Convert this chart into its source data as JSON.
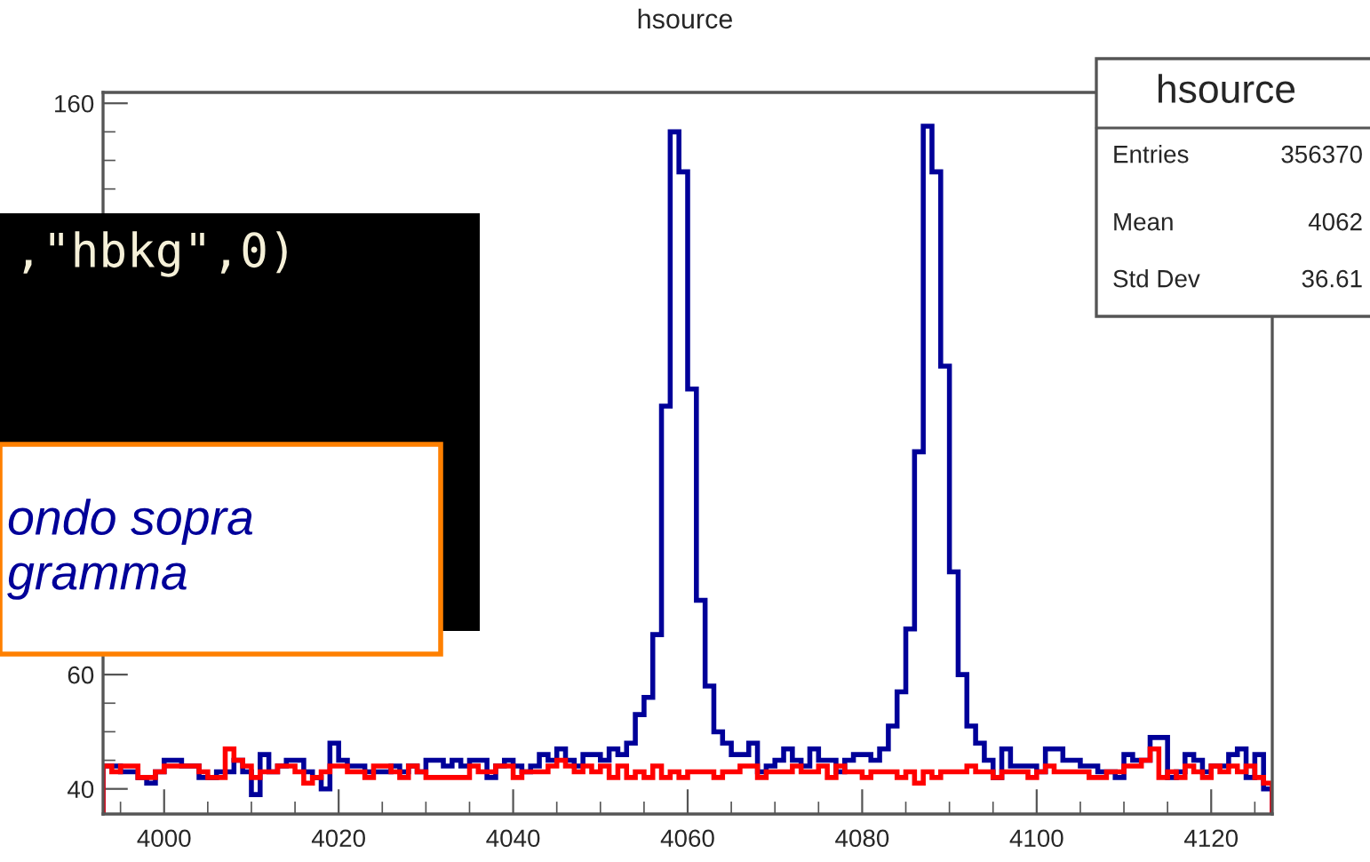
{
  "chart_data": {
    "type": "histogram",
    "title": "hsource",
    "bins": [
      3993,
      3994,
      3995,
      3996,
      3997,
      3998,
      3999,
      4000,
      4001,
      4002,
      4003,
      4004,
      4005,
      4006,
      4007,
      4008,
      4009,
      4010,
      4011,
      4012,
      4013,
      4014,
      4015,
      4016,
      4017,
      4018,
      4019,
      4020,
      4021,
      4022,
      4023,
      4024,
      4025,
      4026,
      4027,
      4028,
      4029,
      4030,
      4031,
      4032,
      4033,
      4034,
      4035,
      4036,
      4037,
      4038,
      4039,
      4040,
      4041,
      4042,
      4043,
      4044,
      4045,
      4046,
      4047,
      4048,
      4049,
      4050,
      4051,
      4052,
      4053,
      4054,
      4055,
      4056,
      4057,
      4058,
      4059,
      4060,
      4061,
      4062,
      4063,
      4064,
      4065,
      4066,
      4067,
      4068,
      4069,
      4070,
      4071,
      4072,
      4073,
      4074,
      4075,
      4076,
      4077,
      4078,
      4079,
      4080,
      4081,
      4082,
      4083,
      4084,
      4085,
      4086,
      4087,
      4088,
      4089,
      4090,
      4091,
      4092,
      4093,
      4094,
      4095,
      4096,
      4097,
      4098,
      4099,
      4100,
      4101,
      4102,
      4103,
      4104,
      4105,
      4106,
      4107,
      4108,
      4109,
      4110,
      4111,
      4112,
      4113,
      4114,
      4115,
      4116,
      4117,
      4118,
      4119,
      4120,
      4121,
      4122,
      4123,
      4124,
      4125,
      4126,
      4127
    ],
    "series": [
      {
        "color": "#000099",
        "values": [
          44,
          44,
          43,
          43,
          42,
          41,
          43,
          45,
          45,
          44,
          44,
          42,
          42,
          43,
          43,
          45,
          43,
          39,
          46,
          43,
          44,
          45,
          45,
          43,
          42,
          40,
          48,
          45,
          44,
          44,
          43,
          43,
          43,
          44,
          43,
          44,
          43,
          45,
          45,
          44,
          45,
          44,
          45,
          45,
          42,
          44,
          45,
          44,
          43,
          44,
          46,
          45,
          47,
          45,
          44,
          46,
          46,
          45,
          47,
          46,
          48,
          53,
          56,
          67,
          107,
          155,
          148,
          110,
          73,
          58,
          50,
          48,
          46,
          46,
          48,
          43,
          44,
          45,
          47,
          45,
          44,
          47,
          45,
          45,
          43,
          45,
          46,
          46,
          45,
          47,
          51,
          57,
          68,
          99,
          156,
          148,
          114,
          78,
          60,
          51,
          48,
          45,
          42,
          47,
          44,
          44,
          44,
          43,
          47,
          47,
          45,
          45,
          44,
          44,
          43,
          43,
          42,
          46,
          45,
          45,
          49,
          49,
          42,
          43,
          46,
          45,
          43,
          44,
          44,
          46,
          47,
          42,
          46,
          40
        ]
      },
      {
        "color": "#ff0000",
        "values": [
          44,
          43,
          44,
          44,
          42,
          42,
          43,
          44,
          44,
          44,
          44,
          43,
          42,
          42,
          47,
          45,
          44,
          42,
          43,
          43,
          44,
          44,
          43,
          41,
          42,
          43,
          44,
          44,
          43,
          43,
          42,
          44,
          44,
          43,
          42,
          44,
          43,
          42,
          42,
          42,
          42,
          42,
          44,
          43,
          43,
          44,
          44,
          42,
          43,
          43,
          43,
          44,
          45,
          44,
          43,
          44,
          43,
          44,
          42,
          44,
          42,
          43,
          42,
          44,
          42,
          43,
          42,
          43,
          43,
          43,
          42,
          43,
          43,
          44,
          44,
          42,
          43,
          43,
          43,
          44,
          43,
          43,
          44,
          42,
          44,
          43,
          43,
          42,
          43,
          43,
          43,
          42,
          43,
          41,
          43,
          42,
          43,
          43,
          43,
          44,
          43,
          43,
          42,
          43,
          43,
          43,
          42,
          43,
          44,
          43,
          43,
          43,
          43,
          42,
          42,
          43,
          43,
          44,
          44,
          45,
          47,
          42,
          43,
          42,
          44,
          43,
          42,
          44,
          43,
          44,
          43,
          44,
          42,
          41
        ]
      }
    ],
    "xlim": [
      3993,
      4127
    ],
    "ylim": [
      35.6,
      161.9
    ],
    "xticks": [
      4000,
      4020,
      4040,
      4060,
      4080,
      4100,
      4120
    ],
    "yticks": [
      40,
      60,
      160
    ],
    "grid": false,
    "legend": false,
    "annotations": [
      "hsource",
      "Entries",
      "356370",
      "Mean",
      "4062",
      "Std Dev",
      "36.61",
      ",\"hbkg\",0)",
      "ondo sopra\ngramma"
    ]
  }
}
